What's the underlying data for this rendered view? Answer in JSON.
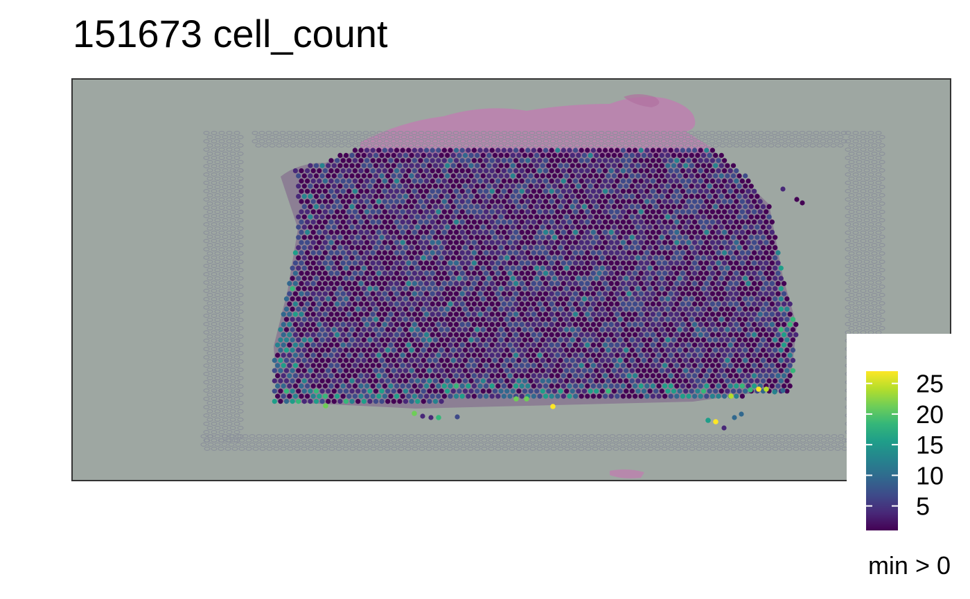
{
  "title": "151673 cell_count",
  "caption": "min > 0",
  "colors": {
    "panel_background": "#9ea7a2",
    "panel_border": "#333333",
    "tissue_pink": "#c27bb1",
    "fiducial": "#8a8f9a",
    "viridis": [
      "#440154",
      "#482878",
      "#3e4a89",
      "#31688e",
      "#26828e",
      "#1f9e89",
      "#35b779",
      "#6ece58",
      "#b5de2b",
      "#fde725"
    ]
  },
  "chart_data": {
    "type": "heatmap",
    "title": "151673 cell_count",
    "xlabel": "",
    "ylabel": "",
    "grid": false,
    "legend": {
      "title": "",
      "placement": "right",
      "ticks": [
        "5",
        "10",
        "15",
        "20",
        "25"
      ],
      "range": [
        1,
        27
      ],
      "palette": "viridis"
    },
    "description_values": {
      "typical_spot_count_range": [
        1,
        10
      ],
      "max_spot_count": 27
    },
    "caption": "min > 0"
  }
}
